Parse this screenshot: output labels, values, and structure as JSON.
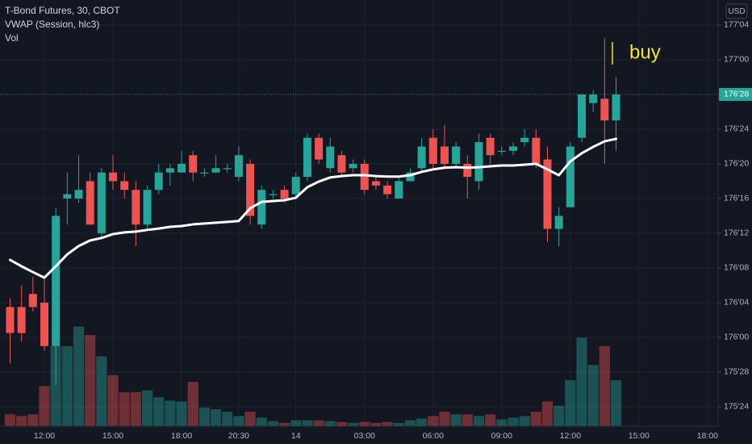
{
  "chart_data": {
    "type": "candlestick",
    "title": "T-Bond Futures, 30, CBOT",
    "currency": "USD",
    "categories": [
      null,
      null,
      null,
      "12:00",
      null,
      null,
      null,
      null,
      null,
      "15:00",
      null,
      null,
      null,
      null,
      null,
      "18:00",
      null,
      null,
      null,
      null,
      "20:30",
      null,
      null,
      null,
      null,
      "14",
      null,
      null,
      null,
      null,
      null,
      "03:00",
      null,
      null,
      null,
      null,
      null,
      "06:00",
      null,
      null,
      null,
      null,
      null,
      "09:00",
      null,
      null,
      null,
      null,
      null,
      "12:00",
      null,
      null,
      null,
      null,
      null,
      "15:00",
      null,
      null,
      null,
      null,
      null,
      "18:00"
    ],
    "open": [
      176.109375,
      176.109375,
      176.15625,
      176.125,
      175.96875,
      176.5,
      176.5,
      176.5625,
      176.375,
      176.59375,
      176.5625,
      176.53125,
      176.40625,
      176.53125,
      176.59375,
      176.59375,
      176.65625,
      176.59375,
      176.59375,
      176.609375,
      176.578125,
      176.625,
      176.40625,
      176.515625,
      176.53125,
      176.515625,
      176.578125,
      176.71875,
      176.609375,
      176.65625,
      176.609375,
      176.625,
      176.5625,
      176.546875,
      176.5,
      176.5625,
      176.609375,
      176.71875,
      176.6875,
      176.625,
      176.625,
      176.5625,
      176.71875,
      176.671875,
      176.671875,
      176.703125,
      176.71875,
      176.640625,
      176.390625,
      176.46875,
      176.71875,
      176.84375,
      176.859375,
      176.78125,
      null,
      null,
      null,
      null,
      null,
      null,
      null,
      null
    ],
    "high": [
      176.140625,
      176.1875,
      176.21875,
      176.21875,
      176.46875,
      176.59375,
      176.65625,
      176.59375,
      176.609375,
      176.65625,
      176.59375,
      176.5625,
      176.546875,
      176.625,
      176.625,
      176.671875,
      176.671875,
      176.609375,
      176.65625,
      176.625,
      176.6875,
      176.640625,
      176.546875,
      176.53125,
      176.546875,
      176.59375,
      176.734375,
      176.734375,
      176.71875,
      176.671875,
      176.640625,
      176.640625,
      176.578125,
      176.5625,
      176.578125,
      176.609375,
      176.71875,
      176.75,
      176.765625,
      176.703125,
      176.65625,
      176.734375,
      176.734375,
      176.6875,
      176.703125,
      176.75,
      176.75,
      176.6875,
      176.46875,
      176.703125,
      176.875,
      176.890625,
      177.078125,
      176.9375,
      null,
      null,
      null,
      null,
      null,
      null,
      null,
      null
    ],
    "low": [
      175.90625,
      175.984375,
      176.09375,
      175.953125,
      175.828125,
      176.40625,
      176.484375,
      176.40625,
      176.359375,
      176.53125,
      176.5,
      176.328125,
      176.390625,
      176.515625,
      176.546875,
      176.59375,
      176.5625,
      176.578125,
      176.59375,
      176.59375,
      176.5625,
      176.40625,
      176.390625,
      176.5,
      176.484375,
      176.5,
      176.5625,
      176.625,
      176.59375,
      176.578125,
      176.59375,
      176.515625,
      176.53125,
      176.5,
      176.5,
      176.5625,
      176.59375,
      176.609375,
      176.609375,
      176.609375,
      176.5,
      176.53125,
      176.625,
      176.65625,
      176.65625,
      176.6875,
      176.609375,
      176.34375,
      176.328125,
      176.46875,
      176.703125,
      176.8125,
      176.625,
      176.671875,
      null,
      null,
      null,
      null,
      null,
      null,
      null,
      null
    ],
    "close": [
      176.015625,
      176.015625,
      176.109375,
      175.96875,
      176.4375,
      176.515625,
      176.53125,
      176.40625,
      176.59375,
      176.5625,
      176.53125,
      176.40625,
      176.53125,
      176.59375,
      176.609375,
      176.625,
      176.59375,
      176.59375,
      176.609375,
      176.609375,
      176.65625,
      176.4375,
      176.53125,
      176.515625,
      176.5,
      176.578125,
      176.71875,
      176.640625,
      176.6875,
      176.59375,
      176.625,
      176.53125,
      176.546875,
      176.515625,
      176.5625,
      176.59375,
      176.6875,
      176.625,
      176.625,
      176.6875,
      176.578125,
      176.703125,
      176.65625,
      176.671875,
      176.6875,
      176.71875,
      176.625,
      176.390625,
      176.4375,
      176.6875,
      176.875,
      176.875,
      176.78125,
      176.875,
      null,
      null,
      null,
      null,
      null,
      null,
      null,
      null
    ],
    "up_color": "#26a69a",
    "down_color": "#ef5350",
    "series": [
      {
        "name": "VWAP (Session, hlc3)",
        "color": "#ffffff",
        "values": [
          176.279,
          176.256,
          176.235,
          176.215,
          176.256,
          176.299,
          176.329,
          176.349,
          176.358,
          176.372,
          176.378,
          176.381,
          176.387,
          176.392,
          176.398,
          176.401,
          176.407,
          176.41,
          176.413,
          176.416,
          176.419,
          176.465,
          176.488,
          176.491,
          176.494,
          176.503,
          176.541,
          176.561,
          176.576,
          176.581,
          176.584,
          176.584,
          176.581,
          176.579,
          176.579,
          176.584,
          176.596,
          176.605,
          176.611,
          176.613,
          176.611,
          176.613,
          176.616,
          176.619,
          176.619,
          176.622,
          176.625,
          176.605,
          176.584,
          176.634,
          176.663,
          176.686,
          176.706,
          176.715,
          null,
          null,
          null,
          null,
          null,
          null,
          null,
          null
        ]
      }
    ],
    "volume": {
      "name": "Vol",
      "axis": "y2",
      "values": [
        14,
        12,
        14,
        47,
        94,
        94,
        117,
        107,
        82,
        60,
        40,
        40,
        42,
        34,
        30,
        29,
        52,
        22,
        20,
        17,
        12,
        17,
        10,
        6,
        4,
        7,
        7,
        7,
        6,
        5,
        4,
        5,
        4,
        5,
        4,
        7,
        9,
        12,
        17,
        14,
        14,
        12,
        14,
        8,
        10,
        12,
        17,
        29,
        24,
        54,
        104,
        72,
        94,
        54,
        null,
        null,
        null,
        null,
        null,
        null,
        null,
        null
      ]
    },
    "ylim": [
      175.68,
      177.215
    ],
    "yticks": [
      {
        "value": 175.75,
        "label": "175'24"
      },
      {
        "value": 175.875,
        "label": "175'28"
      },
      {
        "value": 176,
        "label": "176'00"
      },
      {
        "value": 176.125,
        "label": "176'04"
      },
      {
        "value": 176.25,
        "label": "176'08"
      },
      {
        "value": 176.375,
        "label": "176'12"
      },
      {
        "value": 176.5,
        "label": "176'16"
      },
      {
        "value": 176.625,
        "label": "176'20"
      },
      {
        "value": 176.75,
        "label": "176'24"
      },
      {
        "value": 177,
        "label": "177'00"
      },
      {
        "value": 177.125,
        "label": "177'04"
      }
    ],
    "y2lim": [
      0,
      500
    ],
    "last_price": {
      "value": 176.875,
      "label": "176'28"
    },
    "annotations": [
      {
        "text": "buy",
        "color": "#f5e32c"
      }
    ],
    "grid": true
  }
}
